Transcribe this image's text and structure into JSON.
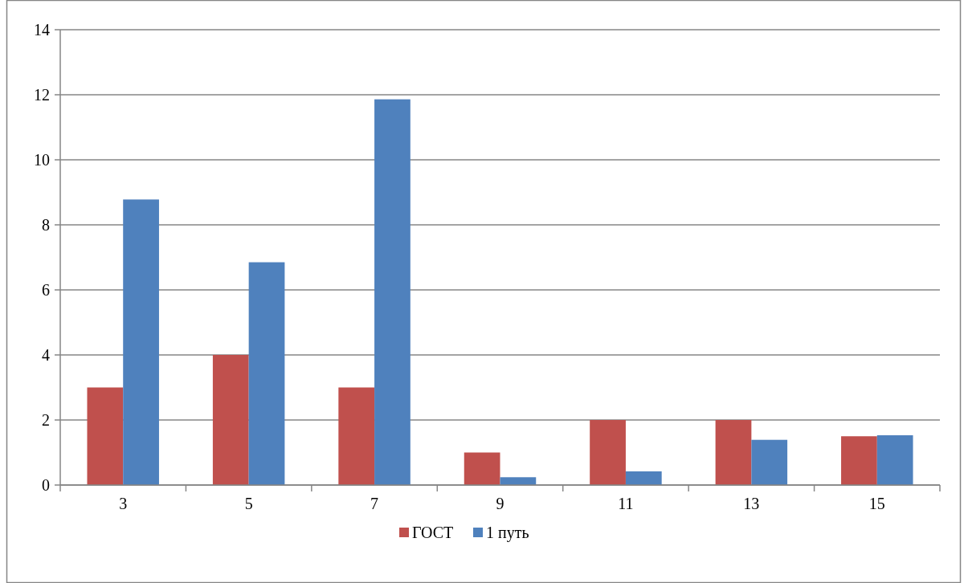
{
  "chart_data": {
    "type": "bar",
    "categories": [
      "3",
      "5",
      "7",
      "9",
      "11",
      "13",
      "15"
    ],
    "series": [
      {
        "name": "ГОСТ",
        "color": "#c0504d",
        "values": [
          3,
          4,
          3,
          1,
          2,
          2,
          1.5
        ]
      },
      {
        "name": "1 путь",
        "color": "#4f81bd",
        "values": [
          8.78,
          6.85,
          11.86,
          0.24,
          0.42,
          1.39,
          1.53
        ]
      }
    ],
    "ylim": [
      0,
      14
    ],
    "yticks": [
      0,
      2,
      4,
      6,
      8,
      10,
      12,
      14
    ],
    "grid": "y",
    "legend": "bottom"
  }
}
